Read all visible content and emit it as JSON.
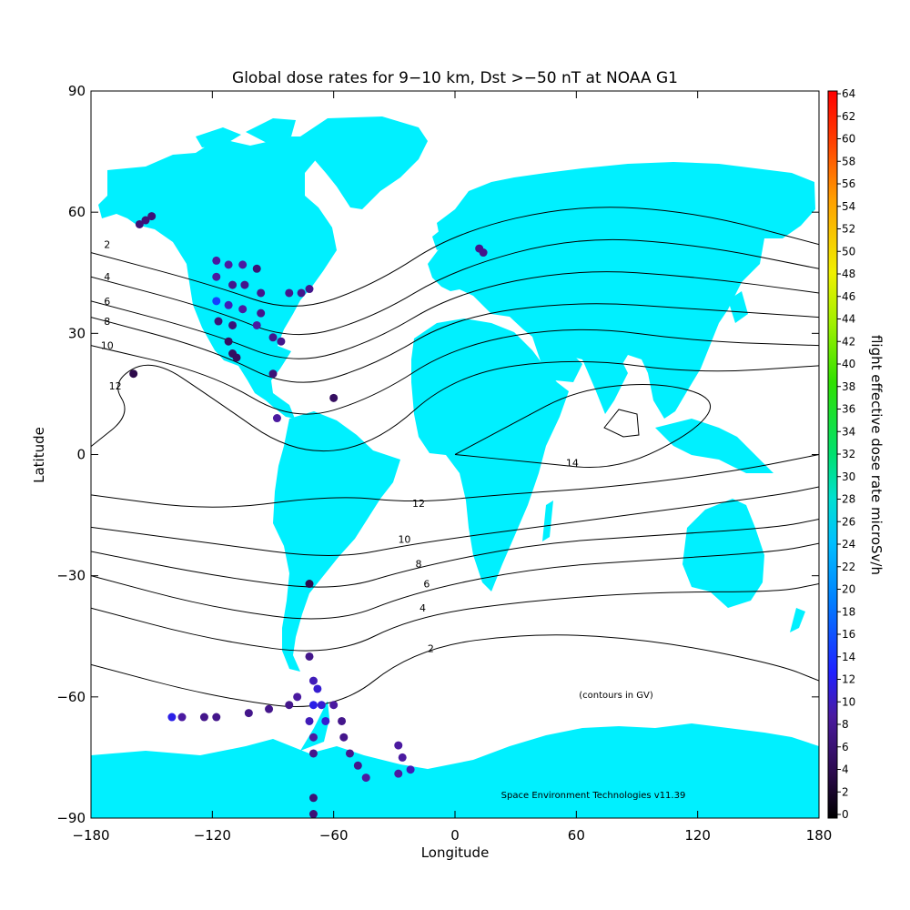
{
  "chart_data": {
    "type": "scatter",
    "title": "Global dose rates for 9−10 km, Dst >−50 nT at NOAA G1",
    "xlabel": "Longitude",
    "ylabel": "Latitude",
    "xlim": [
      -180,
      180
    ],
    "ylim": [
      -90,
      90
    ],
    "x_ticks": [
      -180,
      -120,
      -60,
      0,
      60,
      120,
      180
    ],
    "y_ticks": [
      -90,
      -60,
      -30,
      0,
      30,
      60,
      90
    ],
    "x_tick_labels": [
      "−180",
      "−120",
      "−60",
      "0",
      "60",
      "120",
      "180"
    ],
    "y_tick_labels": [
      "−90",
      "−60",
      "−30",
      "0",
      "30",
      "60",
      "90"
    ],
    "colorbar": {
      "label": "flight effective dose rate microSv/h",
      "min": 0,
      "max": 64,
      "ticks": [
        0,
        2,
        4,
        6,
        8,
        10,
        12,
        14,
        16,
        18,
        20,
        22,
        24,
        26,
        28,
        30,
        32,
        34,
        36,
        38,
        40,
        42,
        44,
        46,
        48,
        50,
        52,
        54,
        56,
        58,
        60,
        62,
        64
      ]
    },
    "annotations": {
      "contour_note": "(contours in GV)",
      "credit": "Space Environment Technologies v11.39"
    },
    "land_color": "#00f0ff",
    "contours": [
      {
        "label": "2",
        "points": [
          [
            -180,
            50
          ],
          [
            -120,
            42
          ],
          [
            -80,
            35
          ],
          [
            -40,
            42
          ],
          [
            0,
            55
          ],
          [
            60,
            62
          ],
          [
            120,
            60
          ],
          [
            180,
            52
          ]
        ],
        "label_at": [
          -172,
          52
        ]
      },
      {
        "label": "4",
        "points": [
          [
            -180,
            44
          ],
          [
            -120,
            36
          ],
          [
            -80,
            28
          ],
          [
            -40,
            34
          ],
          [
            0,
            46
          ],
          [
            60,
            54
          ],
          [
            120,
            52
          ],
          [
            180,
            46
          ]
        ],
        "label_at": [
          -172,
          44
        ]
      },
      {
        "label": "6",
        "points": [
          [
            -180,
            38
          ],
          [
            -120,
            30
          ],
          [
            -80,
            22
          ],
          [
            -40,
            28
          ],
          [
            0,
            40
          ],
          [
            60,
            46
          ],
          [
            120,
            44
          ],
          [
            180,
            40
          ]
        ],
        "label_at": [
          -172,
          38
        ]
      },
      {
        "label": "8",
        "points": [
          [
            -180,
            34
          ],
          [
            -120,
            26
          ],
          [
            -80,
            16
          ],
          [
            -40,
            22
          ],
          [
            0,
            34
          ],
          [
            60,
            38
          ],
          [
            120,
            36
          ],
          [
            180,
            34
          ]
        ],
        "label_at": [
          -172,
          33
        ]
      },
      {
        "label": "10",
        "points": [
          [
            -180,
            27
          ],
          [
            -120,
            20
          ],
          [
            -80,
            8
          ],
          [
            -40,
            14
          ],
          [
            0,
            27
          ],
          [
            60,
            32
          ],
          [
            120,
            28
          ],
          [
            180,
            27
          ]
        ],
        "label_at": [
          -172,
          27
        ]
      },
      {
        "label": "12",
        "points": [
          [
            -180,
            2
          ],
          [
            -160,
            10
          ],
          [
            -170,
            18
          ],
          [
            -150,
            24
          ],
          [
            -120,
            14
          ],
          [
            -80,
            0
          ],
          [
            -40,
            2
          ],
          [
            0,
            20
          ],
          [
            60,
            24
          ],
          [
            120,
            20
          ],
          [
            180,
            22
          ]
        ],
        "label_at": [
          -168,
          17
        ]
      },
      {
        "label": "14",
        "points": [
          [
            0,
            0
          ],
          [
            40,
            -2
          ],
          [
            80,
            -4
          ],
          [
            120,
            6
          ],
          [
            130,
            14
          ],
          [
            100,
            18
          ],
          [
            60,
            16
          ],
          [
            30,
            8
          ],
          [
            0,
            0
          ]
        ],
        "label_at": [
          58,
          -2
        ]
      },
      {
        "label": "12",
        "points": [
          [
            -180,
            -10
          ],
          [
            -120,
            -14
          ],
          [
            -60,
            -10
          ],
          [
            -20,
            -12
          ],
          [
            20,
            -10
          ],
          [
            80,
            -8
          ],
          [
            140,
            -4
          ],
          [
            180,
            0
          ]
        ],
        "label_at": [
          -18,
          -12
        ]
      },
      {
        "label": "10",
        "points": [
          [
            -180,
            -18
          ],
          [
            -120,
            -22
          ],
          [
            -60,
            -26
          ],
          [
            -20,
            -22
          ],
          [
            40,
            -18
          ],
          [
            100,
            -14
          ],
          [
            160,
            -10
          ],
          [
            180,
            -8
          ]
        ],
        "label_at": [
          -25,
          -21
        ]
      },
      {
        "label": "8",
        "points": [
          [
            -180,
            -24
          ],
          [
            -120,
            -30
          ],
          [
            -60,
            -34
          ],
          [
            -20,
            -28
          ],
          [
            40,
            -22
          ],
          [
            100,
            -20
          ],
          [
            160,
            -18
          ],
          [
            180,
            -16
          ]
        ],
        "label_at": [
          -18,
          -27
        ]
      },
      {
        "label": "6",
        "points": [
          [
            -180,
            -30
          ],
          [
            -120,
            -38
          ],
          [
            -60,
            -42
          ],
          [
            -20,
            -34
          ],
          [
            40,
            -28
          ],
          [
            100,
            -26
          ],
          [
            160,
            -24
          ],
          [
            180,
            -22
          ]
        ],
        "label_at": [
          -14,
          -32
        ]
      },
      {
        "label": "4",
        "points": [
          [
            -180,
            -38
          ],
          [
            -120,
            -46
          ],
          [
            -60,
            -50
          ],
          [
            -20,
            -40
          ],
          [
            40,
            -36
          ],
          [
            100,
            -34
          ],
          [
            160,
            -34
          ],
          [
            180,
            -32
          ]
        ],
        "label_at": [
          -16,
          -38
        ]
      },
      {
        "label": "2",
        "points": [
          [
            -180,
            -52
          ],
          [
            -120,
            -60
          ],
          [
            -60,
            -64
          ],
          [
            -20,
            -48
          ],
          [
            40,
            -44
          ],
          [
            100,
            -46
          ],
          [
            160,
            -52
          ],
          [
            180,
            -56
          ]
        ],
        "label_at": [
          -12,
          -48
        ]
      }
    ],
    "points": [
      {
        "lon": -156,
        "lat": 57,
        "dose": 6
      },
      {
        "lon": -153,
        "lat": 58,
        "dose": 6
      },
      {
        "lon": -150,
        "lat": 59,
        "dose": 6
      },
      {
        "lon": -118,
        "lat": 48,
        "dose": 8
      },
      {
        "lon": -112,
        "lat": 47,
        "dose": 8
      },
      {
        "lon": -105,
        "lat": 47,
        "dose": 8
      },
      {
        "lon": -98,
        "lat": 46,
        "dose": 6
      },
      {
        "lon": -118,
        "lat": 44,
        "dose": 8
      },
      {
        "lon": -110,
        "lat": 42,
        "dose": 7
      },
      {
        "lon": -104,
        "lat": 42,
        "dose": 7
      },
      {
        "lon": -118,
        "lat": 38,
        "dose": 14
      },
      {
        "lon": -112,
        "lat": 37,
        "dose": 9
      },
      {
        "lon": -105,
        "lat": 36,
        "dose": 8
      },
      {
        "lon": -96,
        "lat": 35,
        "dose": 7
      },
      {
        "lon": -117,
        "lat": 33,
        "dose": 6
      },
      {
        "lon": -110,
        "lat": 32,
        "dose": 6
      },
      {
        "lon": -112,
        "lat": 28,
        "dose": 5
      },
      {
        "lon": -110,
        "lat": 25,
        "dose": 5
      },
      {
        "lon": -108,
        "lat": 24,
        "dose": 5
      },
      {
        "lon": -98,
        "lat": 32,
        "dose": 8
      },
      {
        "lon": -90,
        "lat": 29,
        "dose": 7
      },
      {
        "lon": -86,
        "lat": 28,
        "dose": 7
      },
      {
        "lon": -82,
        "lat": 40,
        "dose": 7
      },
      {
        "lon": -76,
        "lat": 40,
        "dose": 7
      },
      {
        "lon": -72,
        "lat": 41,
        "dose": 7
      },
      {
        "lon": -96,
        "lat": 40,
        "dose": 7
      },
      {
        "lon": -90,
        "lat": 20,
        "dose": 6
      },
      {
        "lon": -88,
        "lat": 9,
        "dose": 8
      },
      {
        "lon": -60,
        "lat": 14,
        "dose": 5
      },
      {
        "lon": -159,
        "lat": 20,
        "dose": 4
      },
      {
        "lon": -72,
        "lat": -32,
        "dose": 4
      },
      {
        "lon": -72,
        "lat": -50,
        "dose": 7
      },
      {
        "lon": -70,
        "lat": -56,
        "dose": 9
      },
      {
        "lon": -68,
        "lat": -58,
        "dose": 10
      },
      {
        "lon": -66,
        "lat": -62,
        "dose": 10
      },
      {
        "lon": -64,
        "lat": -66,
        "dose": 10
      },
      {
        "lon": -70,
        "lat": -62,
        "dose": 11
      },
      {
        "lon": -72,
        "lat": -66,
        "dose": 9
      },
      {
        "lon": -70,
        "lat": -70,
        "dose": 8
      },
      {
        "lon": -70,
        "lat": -74,
        "dose": 7
      },
      {
        "lon": -60,
        "lat": -62,
        "dose": 8
      },
      {
        "lon": -56,
        "lat": -66,
        "dose": 7
      },
      {
        "lon": -78,
        "lat": -60,
        "dose": 8
      },
      {
        "lon": -82,
        "lat": -62,
        "dose": 7
      },
      {
        "lon": -92,
        "lat": -63,
        "dose": 7
      },
      {
        "lon": -102,
        "lat": -64,
        "dose": 7
      },
      {
        "lon": -118,
        "lat": -65,
        "dose": 7
      },
      {
        "lon": -124,
        "lat": -65,
        "dose": 7
      },
      {
        "lon": -135,
        "lat": -65,
        "dose": 8
      },
      {
        "lon": -140,
        "lat": -65,
        "dose": 11
      },
      {
        "lon": -55,
        "lat": -70,
        "dose": 7
      },
      {
        "lon": -52,
        "lat": -74,
        "dose": 7
      },
      {
        "lon": -48,
        "lat": -77,
        "dose": 7
      },
      {
        "lon": -44,
        "lat": -80,
        "dose": 8
      },
      {
        "lon": -28,
        "lat": -72,
        "dose": 8
      },
      {
        "lon": -26,
        "lat": -75,
        "dose": 8
      },
      {
        "lon": -28,
        "lat": -79,
        "dose": 8
      },
      {
        "lon": -22,
        "lat": -78,
        "dose": 9
      },
      {
        "lon": -70,
        "lat": -85,
        "dose": 6
      },
      {
        "lon": -70,
        "lat": -89,
        "dose": 6
      },
      {
        "lon": 12,
        "lat": 51,
        "dose": 7
      },
      {
        "lon": 14,
        "lat": 50,
        "dose": 7
      }
    ]
  }
}
